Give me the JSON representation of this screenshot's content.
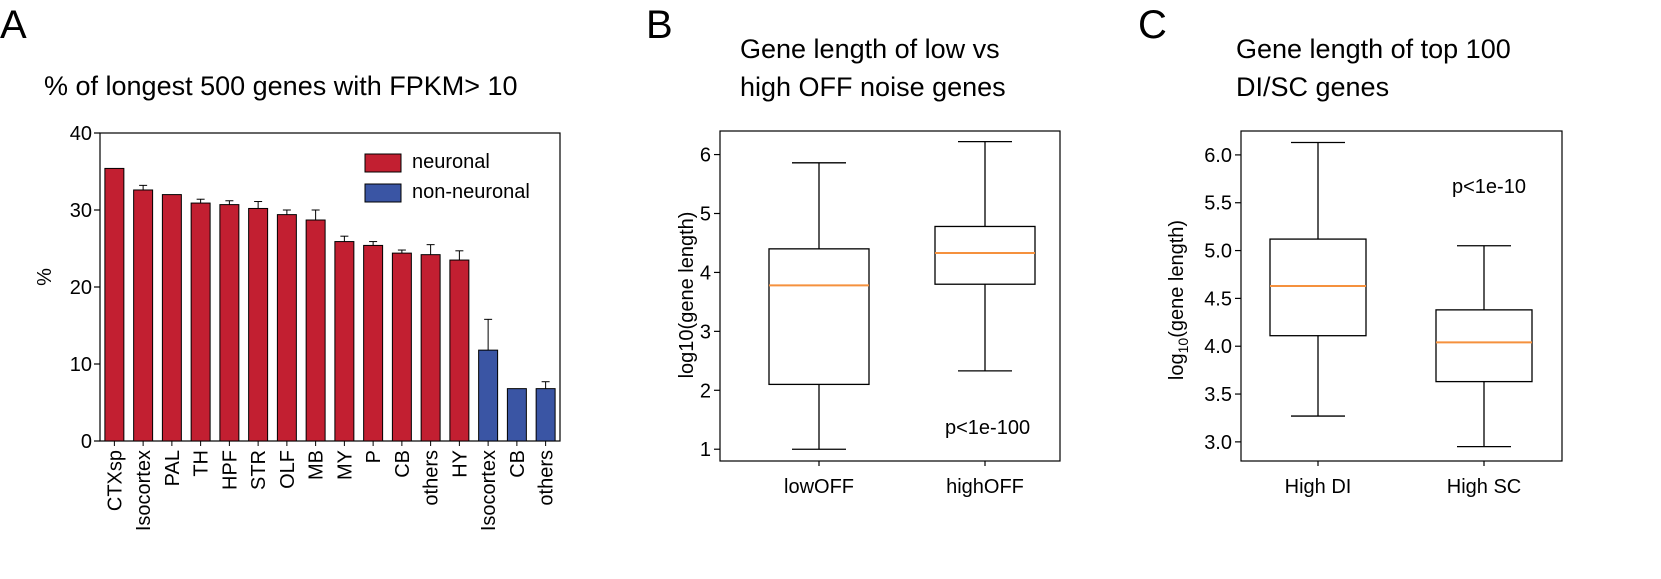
{
  "panels": {
    "a": {
      "label": "A",
      "title_lines": [
        "% of longest 500 genes with FPKM> 10"
      ]
    },
    "b": {
      "label": "B",
      "title_lines": [
        "Gene length of low vs",
        "high OFF noise genes"
      ]
    },
    "c": {
      "label": "C",
      "title_lines": [
        "Gene length of top 100",
        "DI/SC genes"
      ]
    }
  },
  "colors": {
    "neuronal": "#c21f31",
    "non_neuronal": "#3a55a4",
    "median": "#f5913e"
  },
  "chart_data": [
    {
      "type": "bar",
      "title": "% of longest 500 genes with FPKM> 10",
      "ylabel": "%",
      "ylim": [
        0,
        40
      ],
      "yticks": [
        0,
        10,
        20,
        30,
        40
      ],
      "legend": {
        "position": "top-right",
        "entries": [
          "neuronal",
          "non-neuronal"
        ]
      },
      "categories": [
        "CTXsp",
        "Isocortex",
        "PAL",
        "TH",
        "HPF",
        "STR",
        "OLF",
        "MB",
        "MY",
        "P",
        "CB",
        "others",
        "HY",
        "Isocortex",
        "CB",
        "others"
      ],
      "groups": [
        "neuronal",
        "neuronal",
        "neuronal",
        "neuronal",
        "neuronal",
        "neuronal",
        "neuronal",
        "neuronal",
        "neuronal",
        "neuronal",
        "neuronal",
        "neuronal",
        "neuronal",
        "non-neuronal",
        "non-neuronal",
        "non-neuronal"
      ],
      "values": [
        35.4,
        32.6,
        32.0,
        30.9,
        30.7,
        30.2,
        29.4,
        28.7,
        25.9,
        25.4,
        24.4,
        24.2,
        23.5,
        11.8,
        6.8,
        6.8
      ],
      "errors": [
        0,
        0.6,
        0,
        0.5,
        0.5,
        0.9,
        0.6,
        1.3,
        0.7,
        0.5,
        0.4,
        1.3,
        1.2,
        4.0,
        0,
        0.9
      ]
    },
    {
      "type": "box",
      "title": "Gene length of low vs high OFF noise genes",
      "ylabel": "log10(gene length)",
      "ylim": [
        0.8,
        6.4
      ],
      "yticks": [
        1,
        2,
        3,
        4,
        5,
        6
      ],
      "categories": [
        "lowOFF",
        "highOFF"
      ],
      "boxes": [
        {
          "whisker_low": 1.0,
          "q1": 2.1,
          "median": 3.78,
          "q3": 4.4,
          "whisker_high": 5.86
        },
        {
          "whisker_low": 2.33,
          "q1": 3.8,
          "median": 4.33,
          "q3": 4.78,
          "whisker_high": 6.22
        }
      ],
      "annotation": "p<1e-100"
    },
    {
      "type": "box",
      "title": "Gene length of top 100 DI/SC genes",
      "ylabel": "log10(gene length)",
      "ylim": [
        2.8,
        6.25
      ],
      "yticks": [
        3.0,
        3.5,
        4.0,
        4.5,
        5.0,
        5.5,
        6.0
      ],
      "categories": [
        "High DI",
        "High SC"
      ],
      "boxes": [
        {
          "whisker_low": 3.27,
          "q1": 4.11,
          "median": 4.63,
          "q3": 5.12,
          "whisker_high": 6.13
        },
        {
          "whisker_low": 2.95,
          "q1": 3.63,
          "median": 4.04,
          "q3": 4.38,
          "whisker_high": 5.05
        }
      ],
      "annotation": "p<1e-10"
    }
  ]
}
